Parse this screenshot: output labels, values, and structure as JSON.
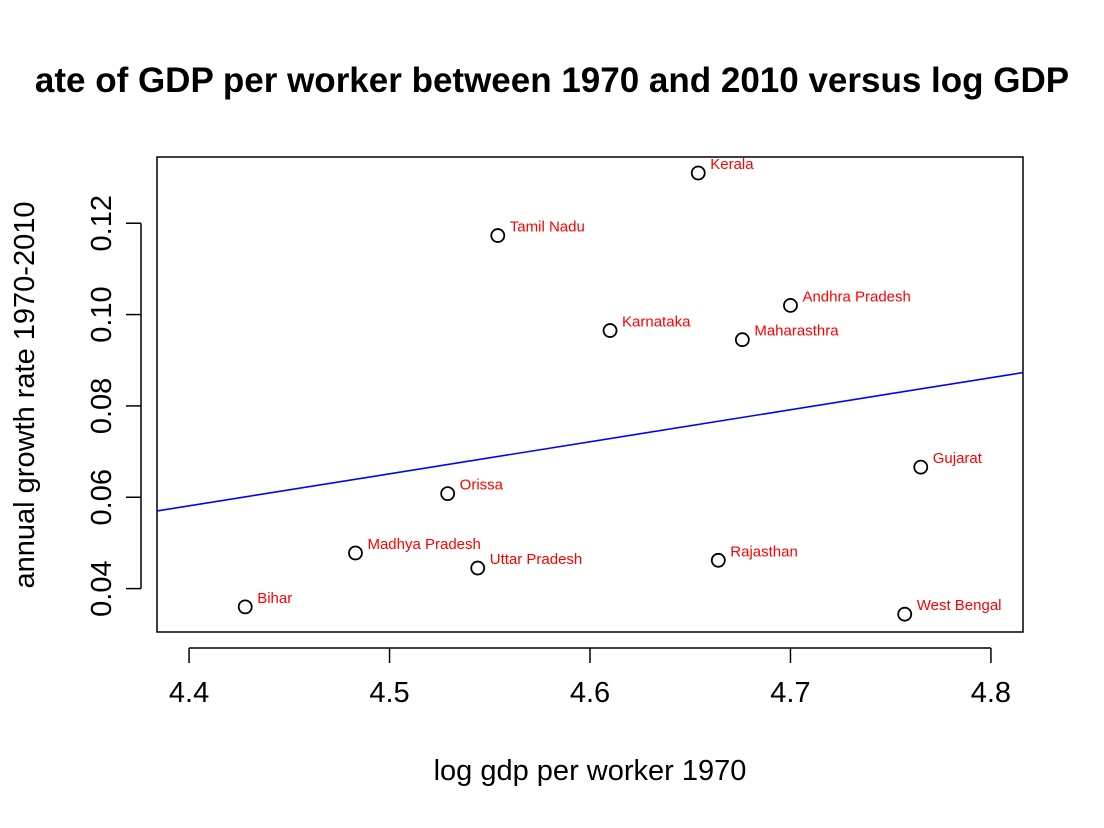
{
  "chart_data": {
    "type": "scatter",
    "title": "ate of GDP per worker between 1970 and 2010 versus log GDP",
    "xlabel": "log gdp per worker 1970",
    "ylabel": "annual growth rate 1970-2010",
    "xlim": [
      4.384,
      4.816
    ],
    "ylim": [
      0.0305,
      0.1345
    ],
    "x_ticks": [
      4.4,
      4.5,
      4.6,
      4.7,
      4.8
    ],
    "x_tick_labels": [
      "4.4",
      "4.5",
      "4.6",
      "4.7",
      "4.8"
    ],
    "y_ticks": [
      0.04,
      0.06,
      0.08,
      0.1,
      0.12
    ],
    "y_tick_labels": [
      "0.04",
      "0.06",
      "0.08",
      "0.10",
      "0.12"
    ],
    "grid": false,
    "point_color": "#000000",
    "label_color": "#ff0000",
    "points": [
      {
        "label": "Kerala",
        "x": 4.654,
        "y": 0.131
      },
      {
        "label": "Tamil Nadu",
        "x": 4.554,
        "y": 0.1173
      },
      {
        "label": "Andhra Pradesh",
        "x": 4.7,
        "y": 0.102
      },
      {
        "label": "Karnataka",
        "x": 4.61,
        "y": 0.0965
      },
      {
        "label": "Maharasthra",
        "x": 4.676,
        "y": 0.0945
      },
      {
        "label": "Gujarat",
        "x": 4.765,
        "y": 0.0666
      },
      {
        "label": "Orissa",
        "x": 4.529,
        "y": 0.0608
      },
      {
        "label": "Madhya Pradesh",
        "x": 4.483,
        "y": 0.0478
      },
      {
        "label": "Uttar Pradesh",
        "x": 4.544,
        "y": 0.0445
      },
      {
        "label": "Rajasthan",
        "x": 4.664,
        "y": 0.0462
      },
      {
        "label": "Bihar",
        "x": 4.428,
        "y": 0.036
      },
      {
        "label": "West Bengal",
        "x": 4.757,
        "y": 0.0344
      }
    ],
    "fit_line": {
      "color": "#0000ff",
      "x": [
        4.384,
        4.816
      ],
      "y": [
        0.057,
        0.0873
      ]
    }
  }
}
